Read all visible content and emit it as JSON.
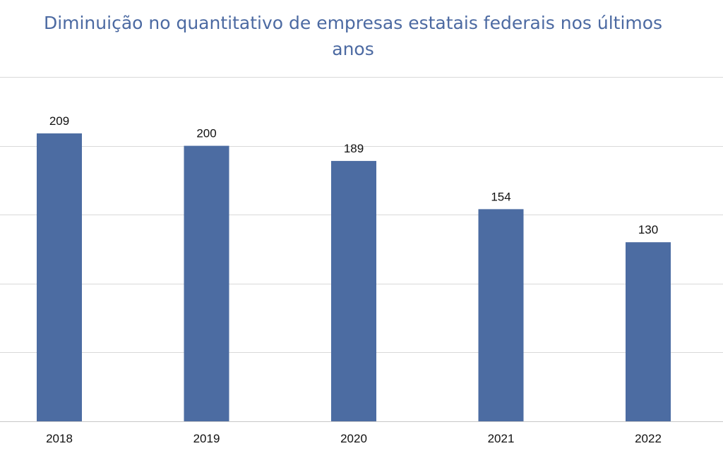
{
  "chart_data": {
    "type": "bar",
    "title": "Diminuição no quantitativo de empresas estatais federais nos últimos anos",
    "categories": [
      "2018",
      "2019",
      "2020",
      "2021",
      "2022"
    ],
    "values": [
      209,
      200,
      189,
      154,
      130
    ],
    "data_labels": [
      "209",
      "200",
      "189",
      "154",
      "130"
    ],
    "xlabel": "",
    "ylabel": "",
    "ylim": [
      0,
      250
    ],
    "y_gridlines": [
      0,
      50,
      100,
      150,
      200,
      250
    ],
    "grid": true,
    "legend": "none",
    "colors": {
      "bar": "#4c6ca2",
      "title": "#4c6aa2",
      "grid": "#d9d9d9",
      "axis": "#c8c8c8",
      "text": "#111111"
    }
  }
}
